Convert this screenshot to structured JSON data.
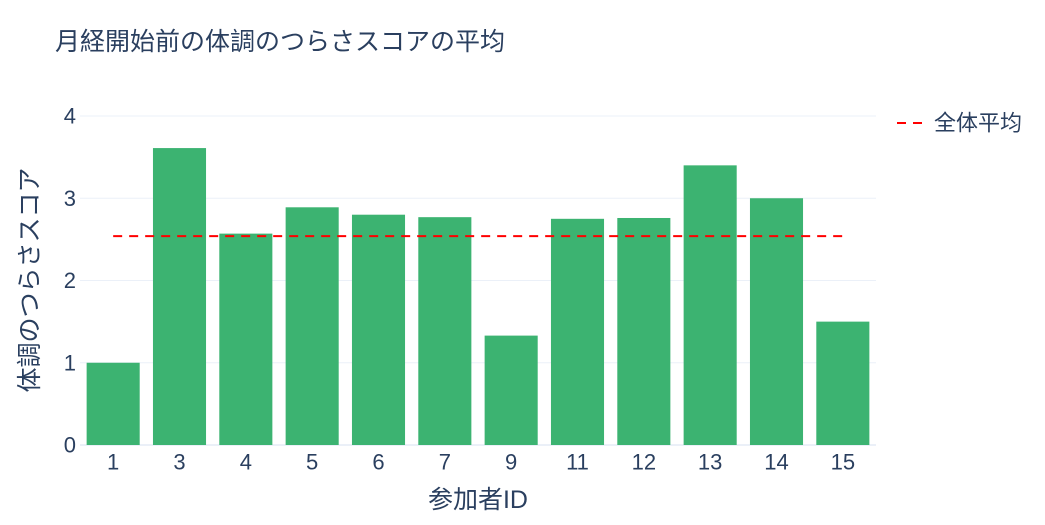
{
  "chart_data": {
    "type": "bar",
    "title": "月経開始前の体調のつらさスコアの平均",
    "xlabel": "参加者ID",
    "ylabel": "体調のつらさスコア",
    "categories": [
      "1",
      "3",
      "4",
      "5",
      "6",
      "7",
      "9",
      "11",
      "12",
      "13",
      "14",
      "15"
    ],
    "values": [
      1.0,
      3.61,
      2.57,
      2.89,
      2.8,
      2.77,
      1.33,
      2.75,
      2.76,
      3.4,
      3.0,
      1.5
    ],
    "bar_color": "#3cb371",
    "ylim": [
      0,
      4
    ],
    "yticks": [
      0,
      1,
      2,
      3,
      4
    ],
    "grid": true,
    "reference_lines": [
      {
        "name": "全体平均",
        "y": 2.54,
        "x_start": "1",
        "x_end": "15",
        "color": "#ff0000",
        "dash": "dashed"
      }
    ],
    "legend": {
      "position": "top-right"
    }
  }
}
